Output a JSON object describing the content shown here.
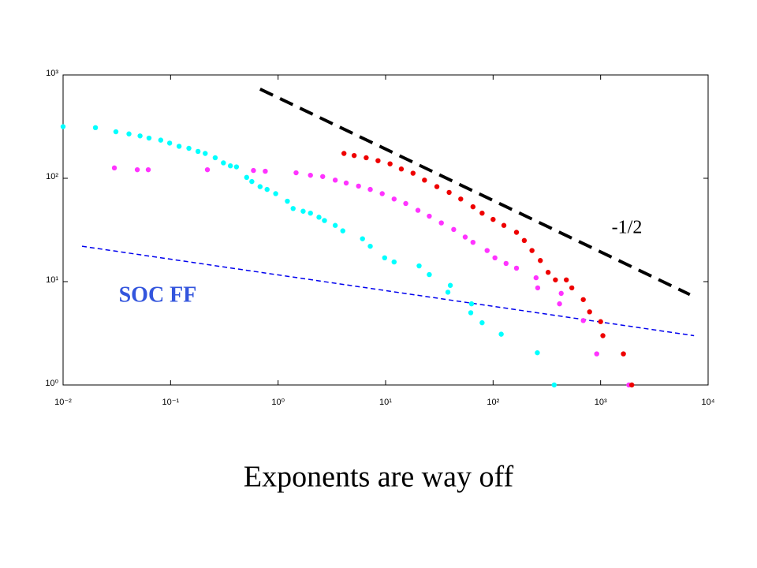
{
  "chart_data": {
    "type": "scatter",
    "log_x": true,
    "log_y": true,
    "xlim": [
      0.01,
      10000
    ],
    "ylim": [
      1,
      1000
    ],
    "xticks": [
      {
        "value": 0.01,
        "label": "10⁻²"
      },
      {
        "value": 0.1,
        "label": "10⁻¹"
      },
      {
        "value": 1,
        "label": "10⁰"
      },
      {
        "value": 10,
        "label": "10¹"
      },
      {
        "value": 100,
        "label": "10²"
      },
      {
        "value": 1000,
        "label": "10³"
      },
      {
        "value": 10000,
        "label": "10⁴"
      }
    ],
    "yticks": [
      {
        "value": 1,
        "label": "10⁰"
      },
      {
        "value": 10,
        "label": "10¹"
      },
      {
        "value": 100,
        "label": "10²"
      },
      {
        "value": 1000,
        "label": "10³"
      }
    ],
    "series": [
      {
        "color": "#00ffff",
        "x": [
          0.01,
          0.02,
          0.031,
          0.041,
          0.052,
          0.063,
          0.081,
          0.098,
          0.12,
          0.148,
          0.18,
          0.21,
          0.26,
          0.31,
          0.36,
          0.41,
          0.51,
          0.57,
          0.68,
          0.79,
          0.95,
          1.22,
          1.38,
          1.71,
          2.0,
          2.4,
          2.7,
          3.4,
          4.0,
          6.1,
          7.2,
          9.8,
          12,
          20.5,
          25.5,
          40,
          38,
          63,
          62,
          79,
          119,
          258,
          370
        ],
        "values": [
          316,
          309,
          282,
          269,
          257,
          245,
          234,
          219,
          204,
          195,
          182,
          174,
          158,
          141,
          132,
          129,
          102,
          93,
          83,
          78,
          71,
          60,
          51,
          48,
          46,
          42,
          39,
          35,
          31,
          26,
          22,
          17,
          15.5,
          14.2,
          11.7,
          9.2,
          7.9,
          6.1,
          5.0,
          4.0,
          3.1,
          2.05,
          1.0
        ]
      },
      {
        "color": "#ff33ff",
        "x": [
          0.03,
          0.049,
          0.062,
          0.22,
          0.59,
          0.76,
          1.47,
          2.0,
          2.6,
          3.4,
          4.3,
          5.6,
          7.2,
          9.3,
          12,
          15.4,
          20,
          25.5,
          33,
          43,
          55,
          65,
          88,
          104,
          132,
          165,
          251,
          260,
          415,
          430,
          690,
          920,
          1830
        ],
        "values": [
          126,
          121,
          121,
          121,
          119,
          117,
          113,
          107,
          104,
          96,
          90,
          84,
          78,
          71,
          63,
          57,
          49,
          43,
          37,
          32,
          27,
          24,
          20,
          17,
          15,
          13.5,
          10.9,
          8.7,
          6.1,
          7.7,
          4.2,
          2.0,
          1.0
        ]
      },
      {
        "color": "#ee0000",
        "x": [
          4.1,
          5.1,
          6.6,
          8.5,
          11,
          14,
          18,
          23,
          30,
          39,
          50,
          65,
          79,
          100,
          126,
          165,
          195,
          230,
          275,
          325,
          380,
          480,
          540,
          690,
          790,
          1000,
          1050,
          1630,
          1950
        ],
        "values": [
          174,
          166,
          158,
          148,
          138,
          123,
          112,
          96,
          83,
          73,
          63,
          53,
          46,
          40,
          35,
          30,
          25,
          20,
          16,
          12.3,
          10.4,
          10.4,
          8.7,
          6.7,
          5.1,
          4.1,
          3.0,
          2.0,
          1.0
        ]
      }
    ],
    "lines": [
      {
        "color": "#000000",
        "dash": "dashed-thick",
        "x": [
          0.68,
          6760
        ],
        "values": [
          730,
          7.5
        ]
      },
      {
        "color": "#0000ee",
        "dash": "dashed-thin",
        "x": [
          0.015,
          7400
        ],
        "values": [
          22,
          3.0
        ]
      }
    ],
    "annotations": [
      "-1/2",
      "SOC FF"
    ],
    "caption": "Exponents are way off"
  }
}
